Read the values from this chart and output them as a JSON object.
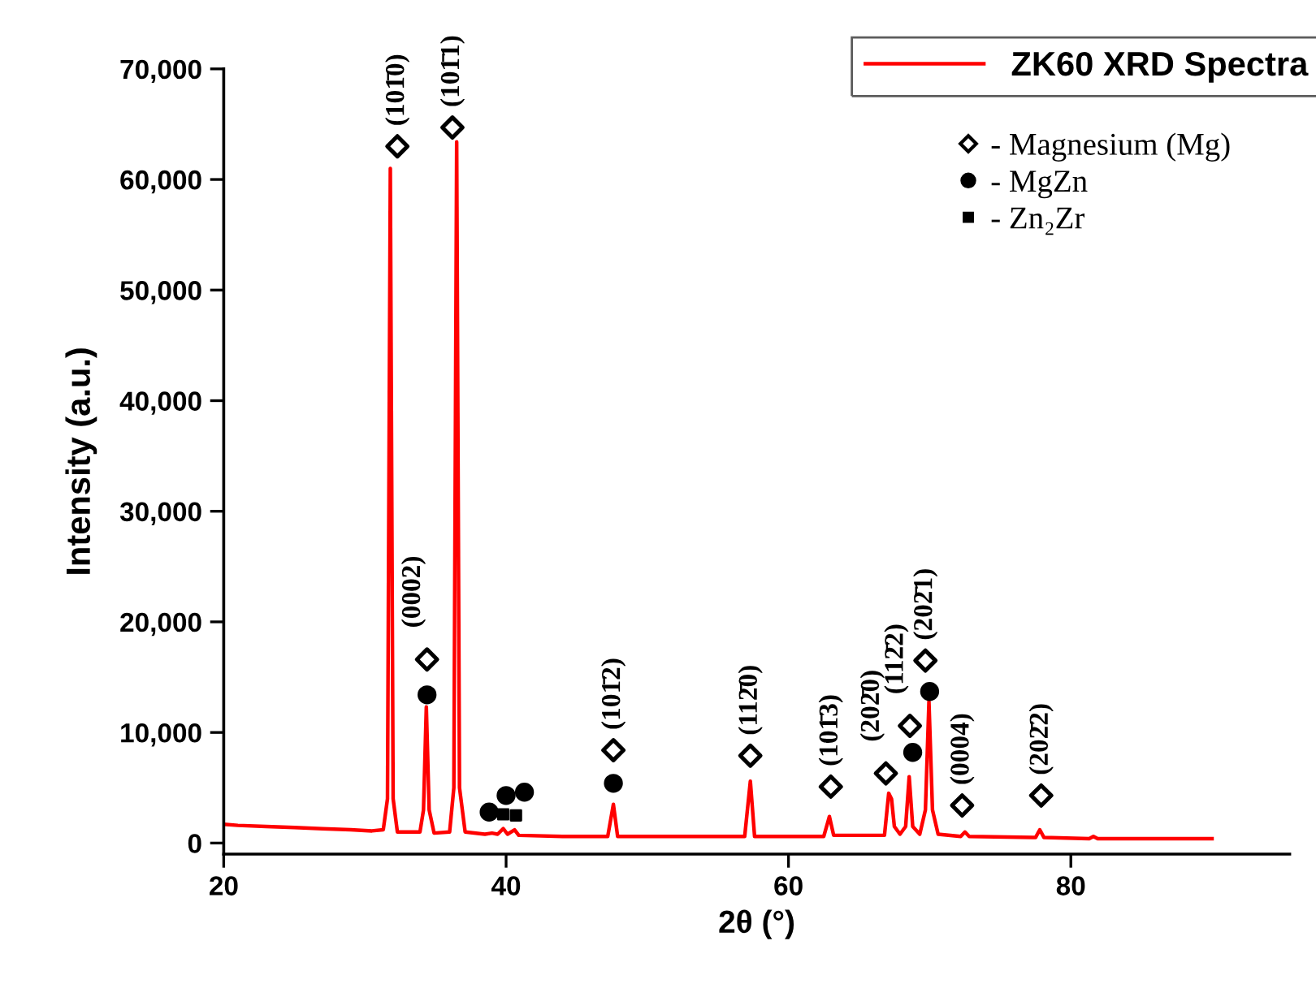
{
  "chart_data": {
    "type": "line",
    "xlabel": "2θ (°)",
    "ylabel": "Intensity (a.u.)",
    "xlim": [
      20,
      95.5
    ],
    "ylim": [
      -1000,
      70000
    ],
    "xticks": [
      20,
      40,
      60,
      80
    ],
    "yticks": [
      {
        "value": 0,
        "label": "0"
      },
      {
        "value": 10000,
        "label": "10,000"
      },
      {
        "value": 20000,
        "label": "20,000"
      },
      {
        "value": 30000,
        "label": "30,000"
      },
      {
        "value": 40000,
        "label": "40,000"
      },
      {
        "value": 50000,
        "label": "50,000"
      },
      {
        "value": 60000,
        "label": "60,000"
      },
      {
        "value": 70000,
        "label": "70,000"
      }
    ],
    "grid": false,
    "legend": "top right",
    "marker": "none",
    "line_style": "solid",
    "series": [
      {
        "name": "ZK60 XRD Spectra",
        "color": "#ff0000",
        "x": [
          20,
          21,
          23,
          25,
          27,
          29,
          30.5,
          31.3,
          31.6,
          31.8,
          32.0,
          32.3,
          33.9,
          34.15,
          34.35,
          34.55,
          34.9,
          36.0,
          36.3,
          36.5,
          36.7,
          37.1,
          38.5,
          39.0,
          39.4,
          39.8,
          40.1,
          40.6,
          40.9,
          44,
          47.2,
          47.6,
          47.9,
          52,
          56.9,
          57.3,
          57.6,
          62.5,
          62.9,
          63.2,
          66.8,
          67.1,
          67.3,
          67.5,
          67.9,
          68.3,
          68.55,
          68.8,
          69.3,
          69.7,
          69.95,
          70.2,
          70.6,
          72.2,
          72.5,
          72.8,
          77.5,
          77.8,
          78.1,
          81.3,
          81.6,
          81.9,
          86,
          90
        ],
        "values": [
          1700,
          1600,
          1500,
          1400,
          1300,
          1200,
          1100,
          1200,
          4000,
          61000,
          4000,
          1000,
          1000,
          3000,
          12300,
          3000,
          900,
          1000,
          5000,
          63400,
          5000,
          1000,
          800,
          900,
          800,
          1300,
          800,
          1200,
          700,
          600,
          600,
          3500,
          600,
          600,
          600,
          5600,
          600,
          600,
          2400,
          700,
          700,
          4500,
          4000,
          1500,
          800,
          1500,
          6000,
          1500,
          800,
          3000,
          12800,
          3000,
          800,
          600,
          1000,
          600,
          500,
          1200,
          500,
          400,
          600,
          400,
          400,
          400
        ]
      },
      {
        "name": "- Magnesium (Mg)",
        "color": "#000000",
        "type": "scatter",
        "marker": "diamond",
        "x": [
          32.3,
          34.4,
          36.2,
          47.6,
          57.3,
          63.0,
          66.9,
          68.6,
          69.7,
          72.3,
          77.9
        ],
        "values": [
          63000,
          16600,
          64700,
          8400,
          7900,
          5100,
          6300,
          10600,
          16500,
          3400,
          4300
        ]
      },
      {
        "name": "- MgZn",
        "color": "#000000",
        "type": "scatter",
        "marker": "circle",
        "x": [
          34.4,
          38.8,
          40.0,
          41.3,
          47.6,
          68.8,
          70.0
        ],
        "values": [
          13400,
          2800,
          4300,
          4600,
          5400,
          8200,
          13700
        ]
      },
      {
        "name": "- Zn₂Zr",
        "color": "#000000",
        "type": "scatter",
        "marker": "square",
        "x": [
          39.8,
          40.7
        ],
        "values": [
          2600,
          2500
        ]
      }
    ],
    "annotations": [
      {
        "text": "(101̄0)",
        "x": 32.3,
        "y": 63000
      },
      {
        "text": "(101̄1)",
        "x": 36.2,
        "y": 64700
      },
      {
        "text": "(0002)",
        "x": 34.4,
        "y": 16600
      },
      {
        "text": "(101̄2)",
        "x": 47.6,
        "y": 8400
      },
      {
        "text": "(112̄0)",
        "x": 57.3,
        "y": 7900
      },
      {
        "text": "(101̄3)",
        "x": 63.0,
        "y": 5100
      },
      {
        "text": "(202̄0)",
        "x": 66.9,
        "y": 6300
      },
      {
        "text": "(112̄2)",
        "x": 68.6,
        "y": 10600
      },
      {
        "text": "(202̄1)",
        "x": 69.7,
        "y": 16500
      },
      {
        "text": "(0004)",
        "x": 72.3,
        "y": 3400
      },
      {
        "text": "(202̄2)",
        "x": 77.9,
        "y": 4300
      }
    ]
  }
}
